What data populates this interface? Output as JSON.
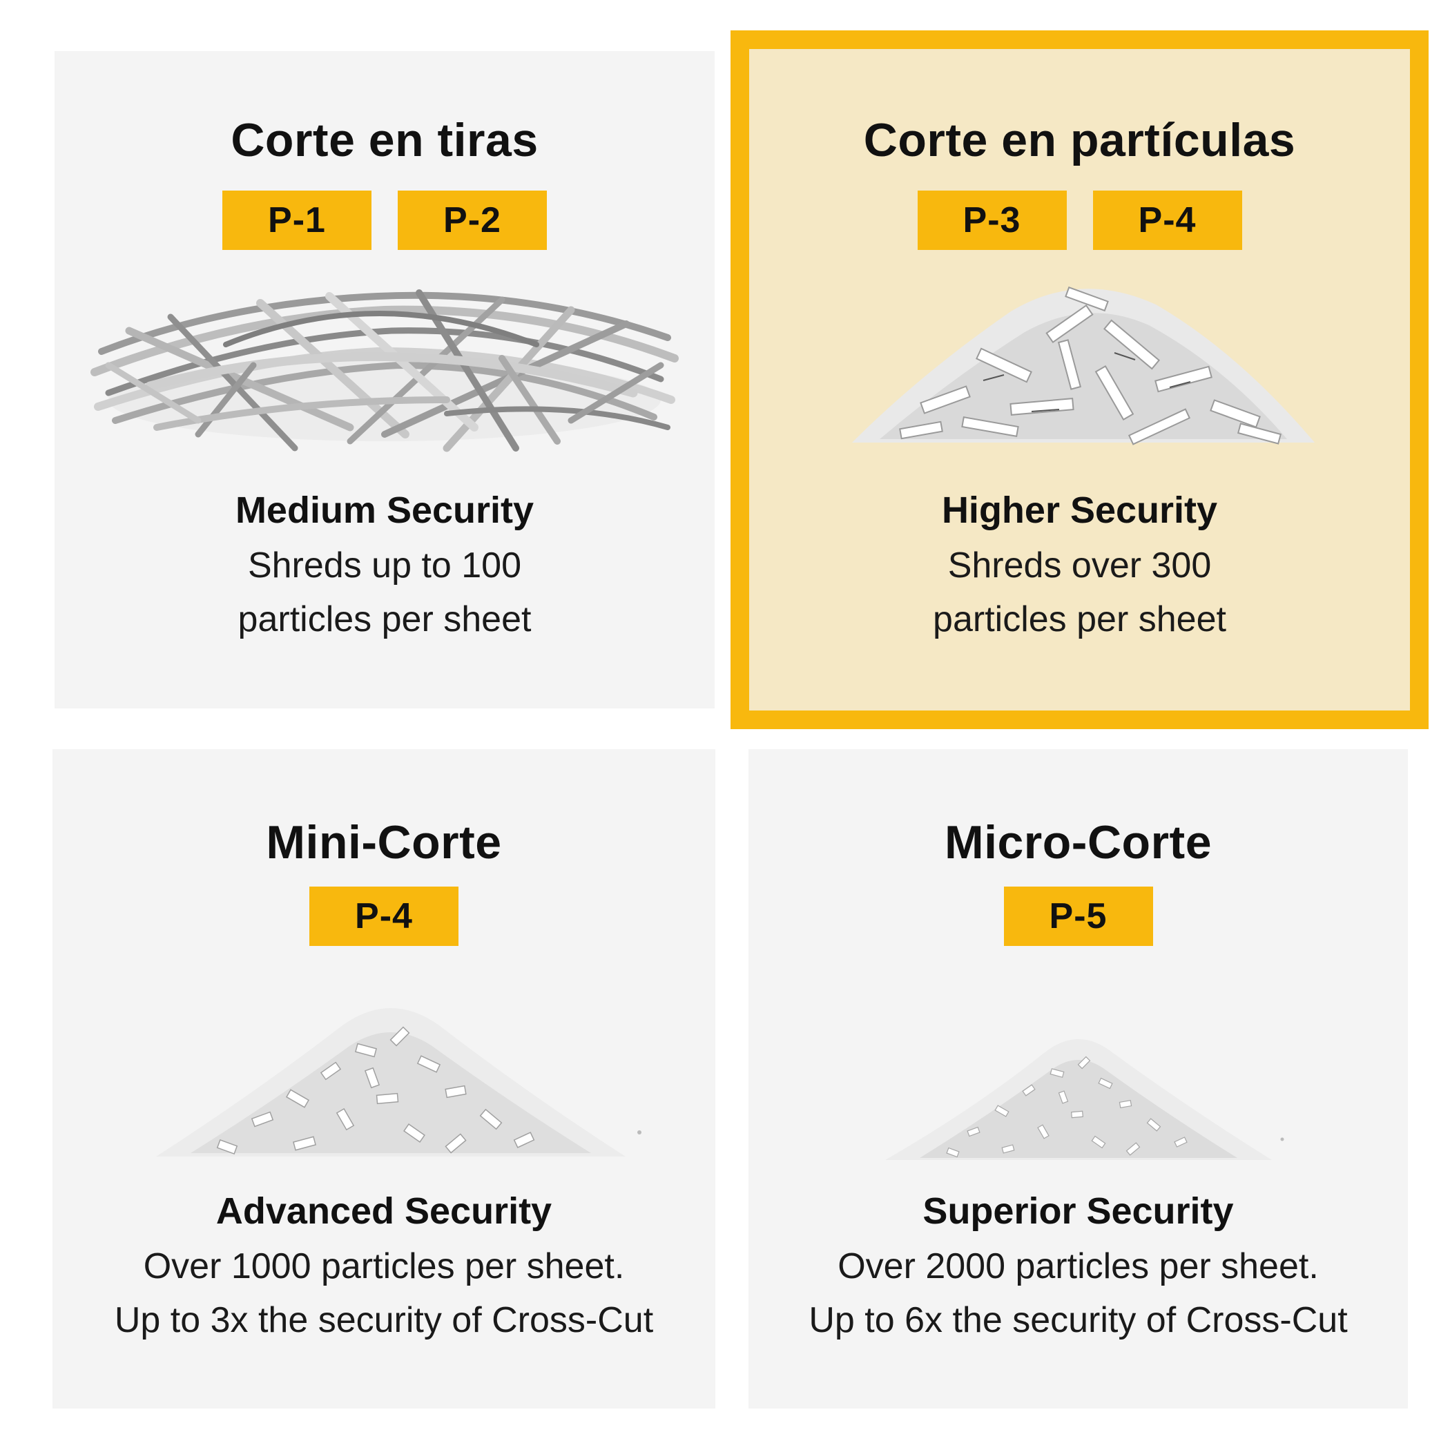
{
  "cards": [
    {
      "title": "Corte en tiras",
      "badges": [
        "P-1",
        "P-2"
      ],
      "subtitle": "Medium Security",
      "desc": [
        "Shreds up to 100",
        "particles per sheet"
      ],
      "icon": "strip-cut-paper-pile"
    },
    {
      "title": "Corte en partículas",
      "badges": [
        "P-3",
        "P-4"
      ],
      "subtitle": "Higher Security",
      "desc": [
        "Shreds over 300",
        "particles per sheet"
      ],
      "icon": "cross-cut-paper-pile"
    },
    {
      "title": "Mini-Corte",
      "badges": [
        "P-4"
      ],
      "subtitle": "Advanced Security",
      "desc": [
        "Over 1000 particles per sheet.",
        "Up to 3x the security of Cross-Cut"
      ],
      "icon": "mini-cut-paper-pile"
    },
    {
      "title": "Micro-Corte",
      "badges": [
        "P-5"
      ],
      "subtitle": "Superior Security",
      "desc": [
        "Over 2000 particles per sheet.",
        "Up to 6x the security of Cross-Cut"
      ],
      "icon": "micro-cut-paper-pile"
    }
  ],
  "colors": {
    "accent": "#f8b80e",
    "card_bg": "#f4f4f4",
    "highlight_bg": "#f5e8c5"
  }
}
